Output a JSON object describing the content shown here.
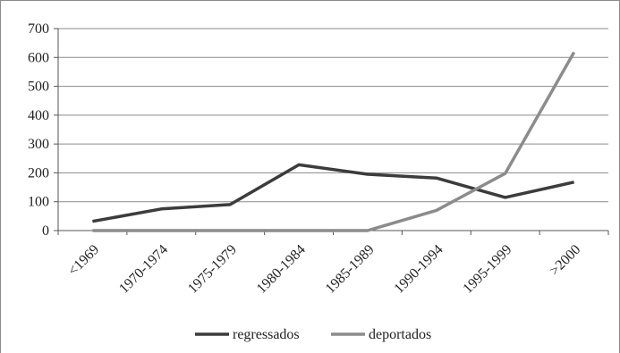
{
  "chart_data": {
    "type": "line",
    "categories": [
      "<1969",
      "1970-1974",
      "1975-1979",
      "1980-1984",
      "1985-1989",
      "1990-1994",
      "1995-1999",
      ">2000"
    ],
    "series": [
      {
        "name": "regressados",
        "values": [
          32,
          75,
          90,
          228,
          195,
          182,
          115,
          168
        ],
        "color": "#3c3c3c"
      },
      {
        "name": "deportados",
        "values": [
          0,
          0,
          0,
          0,
          0,
          70,
          198,
          618
        ],
        "color": "#8c8c8c"
      }
    ],
    "ylim": [
      0,
      700
    ],
    "yticks": [
      0,
      100,
      200,
      300,
      400,
      500,
      600,
      700
    ],
    "title": "",
    "xlabel": "",
    "ylabel": "",
    "grid": true,
    "legend": "bottom"
  }
}
